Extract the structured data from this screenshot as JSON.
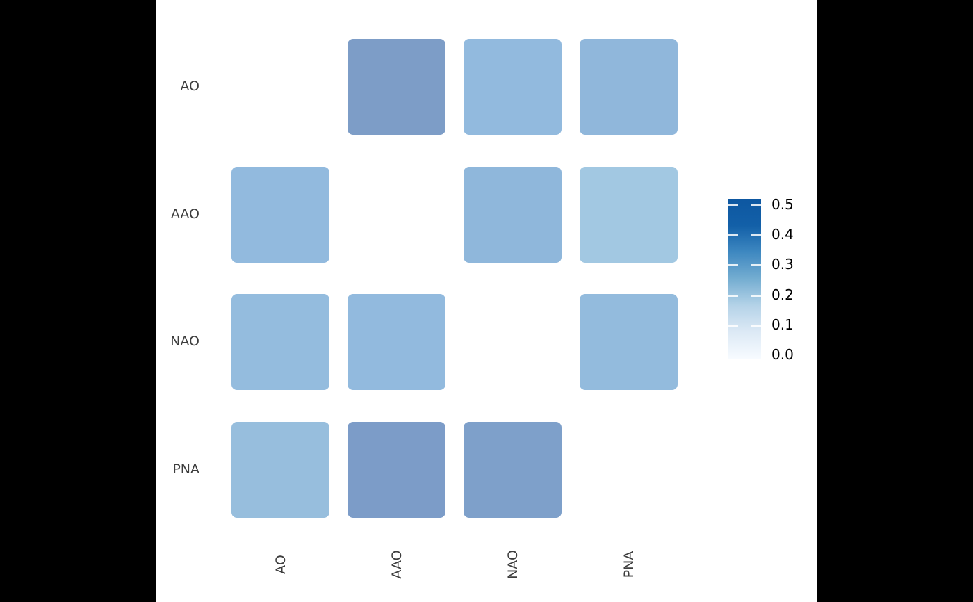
{
  "figure": {
    "letterbox_color": "#000000",
    "panel_background": "#ffffff",
    "axis_label_color": "#3d3d3d",
    "legend_label_color": "#000000"
  },
  "chart_data": {
    "type": "heatmap",
    "title": "",
    "xlabel": "",
    "ylabel": "",
    "x_categories": [
      "AO",
      "AAO",
      "NAO",
      "PNA"
    ],
    "y_categories": [
      "AO",
      "AAO",
      "NAO",
      "PNA"
    ],
    "diagonal_empty": true,
    "cells": [
      {
        "row": "AO",
        "col": "AAO",
        "value": 0.38,
        "color": "#7d9dc7"
      },
      {
        "row": "AO",
        "col": "NAO",
        "value": 0.27,
        "color": "#92bade"
      },
      {
        "row": "AO",
        "col": "PNA",
        "value": 0.28,
        "color": "#90b7db"
      },
      {
        "row": "AAO",
        "col": "AO",
        "value": 0.27,
        "color": "#92bade"
      },
      {
        "row": "AAO",
        "col": "NAO",
        "value": 0.28,
        "color": "#8fb7db"
      },
      {
        "row": "AAO",
        "col": "PNA",
        "value": 0.21,
        "color": "#a2c8e2"
      },
      {
        "row": "NAO",
        "col": "AO",
        "value": 0.26,
        "color": "#94bcde"
      },
      {
        "row": "NAO",
        "col": "AAO",
        "value": 0.27,
        "color": "#92bade"
      },
      {
        "row": "NAO",
        "col": "PNA",
        "value": 0.27,
        "color": "#93bbdd"
      },
      {
        "row": "PNA",
        "col": "AO",
        "value": 0.26,
        "color": "#97bedd"
      },
      {
        "row": "PNA",
        "col": "AAO",
        "value": 0.39,
        "color": "#7c9cc8"
      },
      {
        "row": "PNA",
        "col": "NAO",
        "value": 0.38,
        "color": "#7ea0ca"
      }
    ],
    "legend": {
      "min": 0.0,
      "max": 0.5,
      "ticks": [
        {
          "value": 0.5,
          "label": "0.5"
        },
        {
          "value": 0.4,
          "label": "0.4"
        },
        {
          "value": 0.3,
          "label": "0.3"
        },
        {
          "value": 0.2,
          "label": "0.2"
        },
        {
          "value": 0.1,
          "label": "0.1"
        },
        {
          "value": 0.0,
          "label": "0.0"
        }
      ],
      "gradient_bottom_to_top": [
        "#f7fbff",
        "#dce9f5",
        "#b5d3e8",
        "#74add1",
        "#3d87c0",
        "#1360a8",
        "#0d57a1"
      ],
      "position": "right"
    }
  }
}
